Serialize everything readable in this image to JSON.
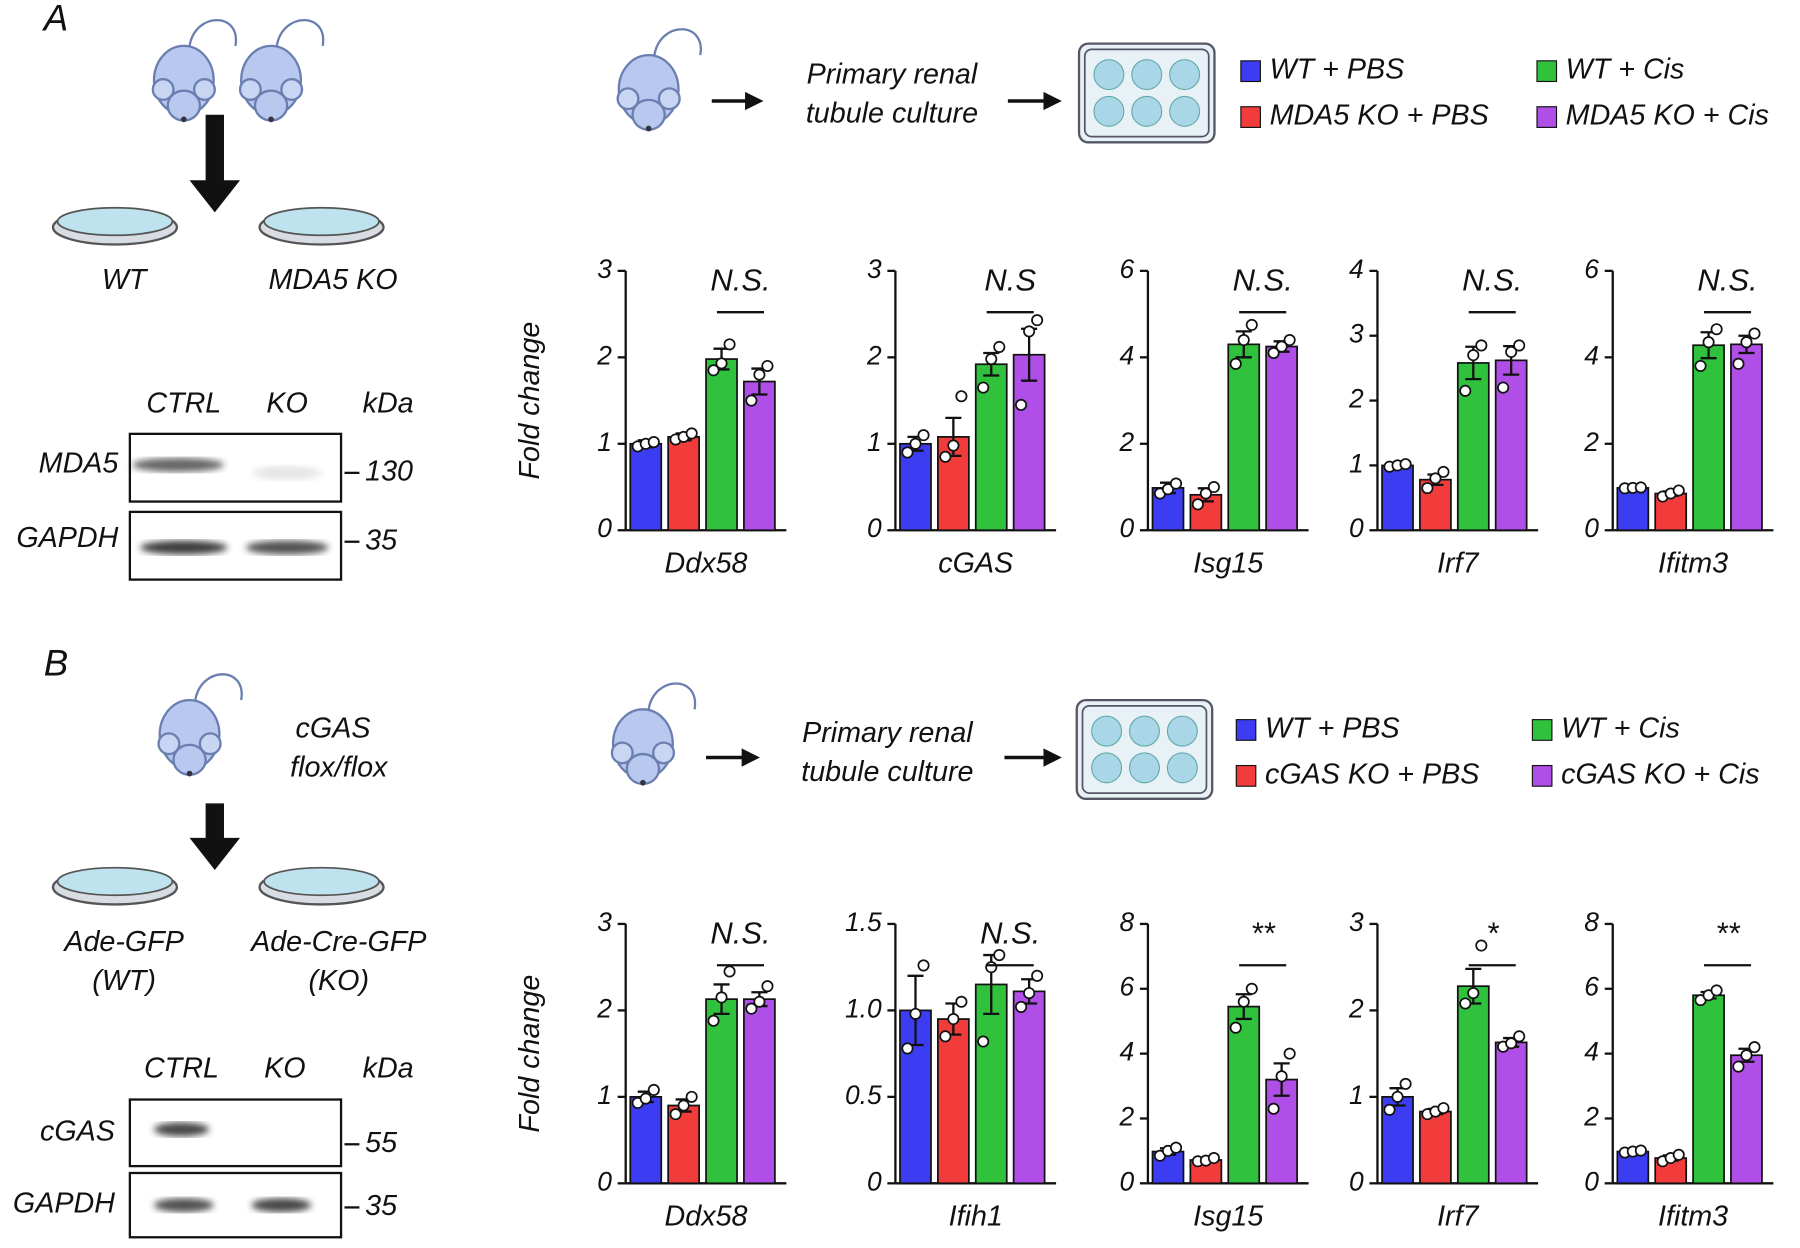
{
  "panels": [
    {
      "label": "A",
      "genotypes": [
        "WT",
        "MDA5 KO"
      ],
      "workflow": [
        "Primary renal",
        "tubule culture"
      ],
      "blot": {
        "lanes": [
          "CTRL",
          "KO"
        ],
        "unit": "kDa",
        "rows": [
          {
            "protein": "MDA5",
            "marker": 130
          },
          {
            "protein": "GAPDH",
            "marker": 35
          }
        ]
      }
    },
    {
      "label": "B",
      "donor": [
        "cGAS",
        "flox/flox"
      ],
      "genotypes": [
        [
          "Ade-GFP",
          "(WT)"
        ],
        [
          "Ade-Cre-GFP",
          "(KO)"
        ]
      ],
      "workflow": [
        "Primary renal",
        "tubule culture"
      ],
      "blot": {
        "lanes": [
          "CTRL",
          "KO"
        ],
        "unit": "kDa",
        "rows": [
          {
            "protein": "cGAS",
            "marker": 55
          },
          {
            "protein": "GAPDH",
            "marker": 35
          }
        ]
      }
    }
  ],
  "chart_data": [
    {
      "type": "bar",
      "xlabel": "Ddx58",
      "ylabel": "Fold change",
      "ylim": [
        0,
        3
      ],
      "yticks": [
        0,
        1,
        2,
        3
      ],
      "annotation": "N.S.",
      "series": [
        {
          "name": "WT + PBS",
          "color": "#3c3cf2",
          "values": [
            1.0
          ],
          "errors": [
            0.04
          ],
          "points": [
            0.97,
            1.0,
            1.02
          ]
        },
        {
          "name": "MDA5 KO + PBS",
          "color": "#f23c3c",
          "values": [
            1.08
          ],
          "errors": [
            0.04
          ],
          "points": [
            1.05,
            1.08,
            1.12
          ]
        },
        {
          "name": "WT + Cis",
          "color": "#30c23c",
          "values": [
            1.98
          ],
          "errors": [
            0.12
          ],
          "points": [
            1.85,
            1.93,
            2.15
          ]
        },
        {
          "name": "MDA5 KO + Cis",
          "color": "#b04ee8",
          "values": [
            1.72
          ],
          "errors": [
            0.15
          ],
          "points": [
            1.5,
            1.8,
            1.9
          ]
        }
      ]
    },
    {
      "type": "bar",
      "xlabel": "cGAS",
      "ylim": [
        0,
        3
      ],
      "yticks": [
        0,
        1,
        2,
        3
      ],
      "annotation": "N.S",
      "series": [
        {
          "color": "#3c3cf2",
          "values": [
            1.0
          ],
          "errors": [
            0.08
          ],
          "points": [
            0.9,
            1.0,
            1.1
          ]
        },
        {
          "color": "#f23c3c",
          "values": [
            1.08
          ],
          "errors": [
            0.22
          ],
          "points": [
            0.85,
            0.98,
            1.55
          ]
        },
        {
          "color": "#30c23c",
          "values": [
            1.92
          ],
          "errors": [
            0.13
          ],
          "points": [
            1.65,
            1.98,
            2.12
          ]
        },
        {
          "color": "#b04ee8",
          "values": [
            2.03
          ],
          "errors": [
            0.3
          ],
          "points": [
            1.45,
            2.3,
            2.43
          ]
        }
      ]
    },
    {
      "type": "bar",
      "xlabel": "Isg15",
      "ylim": [
        0,
        6
      ],
      "yticks": [
        0,
        2,
        4,
        6
      ],
      "annotation": "N.S.",
      "series": [
        {
          "color": "#3c3cf2",
          "values": [
            0.98
          ],
          "errors": [
            0.12
          ],
          "points": [
            0.85,
            0.95,
            1.08
          ]
        },
        {
          "color": "#f23c3c",
          "values": [
            0.82
          ],
          "errors": [
            0.15
          ],
          "points": [
            0.6,
            0.85,
            1.0
          ]
        },
        {
          "color": "#30c23c",
          "values": [
            4.3
          ],
          "errors": [
            0.3
          ],
          "points": [
            3.85,
            4.4,
            4.75
          ]
        },
        {
          "color": "#b04ee8",
          "values": [
            4.25
          ],
          "errors": [
            0.12
          ],
          "points": [
            4.1,
            4.25,
            4.4
          ]
        }
      ]
    },
    {
      "type": "bar",
      "xlabel": "Irf7",
      "ylim": [
        0,
        4
      ],
      "yticks": [
        0,
        1,
        2,
        3,
        4
      ],
      "annotation": "N.S.",
      "series": [
        {
          "color": "#3c3cf2",
          "values": [
            1.0
          ],
          "errors": [
            0.02
          ],
          "points": [
            0.98,
            1.0,
            1.02
          ]
        },
        {
          "color": "#f23c3c",
          "values": [
            0.78
          ],
          "errors": [
            0.08
          ],
          "points": [
            0.65,
            0.8,
            0.9
          ]
        },
        {
          "color": "#30c23c",
          "values": [
            2.58
          ],
          "errors": [
            0.25
          ],
          "points": [
            2.15,
            2.7,
            2.85
          ]
        },
        {
          "color": "#b04ee8",
          "values": [
            2.62
          ],
          "errors": [
            0.22
          ],
          "points": [
            2.2,
            2.75,
            2.85
          ]
        }
      ]
    },
    {
      "type": "bar",
      "xlabel": "Ifitm3",
      "ylim": [
        0,
        6
      ],
      "yticks": [
        0,
        2,
        4,
        6
      ],
      "annotation": "N.S.",
      "series": [
        {
          "color": "#3c3cf2",
          "values": [
            0.98
          ],
          "errors": [
            0.01
          ],
          "points": [
            0.97,
            0.98,
            0.99
          ]
        },
        {
          "color": "#f23c3c",
          "values": [
            0.85
          ],
          "errors": [
            0.05
          ],
          "points": [
            0.78,
            0.85,
            0.92
          ]
        },
        {
          "color": "#30c23c",
          "values": [
            4.28
          ],
          "errors": [
            0.3
          ],
          "points": [
            3.8,
            4.35,
            4.65
          ]
        },
        {
          "color": "#b04ee8",
          "values": [
            4.3
          ],
          "errors": [
            0.2
          ],
          "points": [
            3.85,
            4.35,
            4.55
          ]
        }
      ]
    },
    {
      "type": "bar",
      "xlabel": "Ddx58",
      "ylabel": "Fold change",
      "ylim": [
        0,
        3
      ],
      "yticks": [
        0,
        1,
        2,
        3
      ],
      "annotation": "N.S.",
      "series": [
        {
          "name": "WT + PBS",
          "color": "#3c3cf2",
          "values": [
            1.0
          ],
          "errors": [
            0.06
          ],
          "points": [
            0.93,
            0.98,
            1.08
          ]
        },
        {
          "name": "cGAS KO + PBS",
          "color": "#f23c3c",
          "values": [
            0.9
          ],
          "errors": [
            0.07
          ],
          "points": [
            0.8,
            0.9,
            1.0
          ]
        },
        {
          "name": "WT + Cis",
          "color": "#30c23c",
          "values": [
            2.13
          ],
          "errors": [
            0.17
          ],
          "points": [
            1.88,
            2.15,
            2.45
          ]
        },
        {
          "name": "cGAS KO + Cis",
          "color": "#b04ee8",
          "values": [
            2.13
          ],
          "errors": [
            0.08
          ],
          "points": [
            2.02,
            2.1,
            2.28
          ]
        }
      ]
    },
    {
      "type": "bar",
      "xlabel": "Ifih1",
      "ylim": [
        0,
        1.5
      ],
      "yticks": [
        0,
        0.5,
        {
          "value": 1,
          "label": "1.0"
        },
        1.5
      ],
      "annotation": "N.S.",
      "series": [
        {
          "color": "#3c3cf2",
          "values": [
            1.0
          ],
          "errors": [
            0.2
          ],
          "points": [
            0.78,
            0.98,
            1.26
          ]
        },
        {
          "color": "#f23c3c",
          "values": [
            0.95
          ],
          "errors": [
            0.09
          ],
          "points": [
            0.85,
            0.95,
            1.05
          ]
        },
        {
          "color": "#30c23c",
          "values": [
            1.15
          ],
          "errors": [
            0.17
          ],
          "points": [
            0.82,
            1.25,
            1.32
          ]
        },
        {
          "color": "#b04ee8",
          "values": [
            1.11
          ],
          "errors": [
            0.07
          ],
          "points": [
            1.02,
            1.1,
            1.2
          ]
        }
      ]
    },
    {
      "type": "bar",
      "xlabel": "Isg15",
      "ylim": [
        0,
        8
      ],
      "yticks": [
        0,
        2,
        4,
        6,
        8
      ],
      "annotation": "**",
      "series": [
        {
          "color": "#3c3cf2",
          "values": [
            0.98
          ],
          "errors": [
            0.1
          ],
          "points": [
            0.85,
            1.0,
            1.1
          ]
        },
        {
          "color": "#f23c3c",
          "values": [
            0.72
          ],
          "errors": [
            0.05
          ],
          "points": [
            0.68,
            0.7,
            0.78
          ]
        },
        {
          "color": "#30c23c",
          "values": [
            5.45
          ],
          "errors": [
            0.38
          ],
          "points": [
            4.8,
            5.6,
            6.0
          ]
        },
        {
          "color": "#b04ee8",
          "values": [
            3.2
          ],
          "errors": [
            0.5
          ],
          "points": [
            2.3,
            3.3,
            4.0
          ]
        }
      ]
    },
    {
      "type": "bar",
      "xlabel": "Irf7",
      "ylim": [
        0,
        3
      ],
      "yticks": [
        0,
        1,
        2,
        3
      ],
      "annotation": "*",
      "series": [
        {
          "color": "#3c3cf2",
          "values": [
            1.0
          ],
          "errors": [
            0.1
          ],
          "points": [
            0.85,
            1.0,
            1.15
          ]
        },
        {
          "color": "#f23c3c",
          "values": [
            0.83
          ],
          "errors": [
            0.03
          ],
          "points": [
            0.8,
            0.83,
            0.87
          ]
        },
        {
          "color": "#30c23c",
          "values": [
            2.28
          ],
          "errors": [
            0.2
          ],
          "points": [
            2.08,
            2.2,
            2.75
          ]
        },
        {
          "color": "#b04ee8",
          "values": [
            1.63
          ],
          "errors": [
            0.05
          ],
          "points": [
            1.58,
            1.62,
            1.7
          ]
        }
      ]
    },
    {
      "type": "bar",
      "xlabel": "Ifitm3",
      "ylim": [
        0,
        8
      ],
      "yticks": [
        0,
        2,
        4,
        6,
        8
      ],
      "annotation": "**",
      "series": [
        {
          "color": "#3c3cf2",
          "values": [
            0.98
          ],
          "errors": [
            0.03
          ],
          "points": [
            0.95,
            0.98,
            1.01
          ]
        },
        {
          "color": "#f23c3c",
          "values": [
            0.78
          ],
          "errors": [
            0.08
          ],
          "points": [
            0.68,
            0.78,
            0.88
          ]
        },
        {
          "color": "#30c23c",
          "values": [
            5.8
          ],
          "errors": [
            0.1
          ],
          "points": [
            5.65,
            5.8,
            5.95
          ]
        },
        {
          "color": "#b04ee8",
          "values": [
            3.95
          ],
          "errors": [
            0.2
          ],
          "points": [
            3.6,
            3.95,
            4.2
          ]
        }
      ]
    }
  ]
}
